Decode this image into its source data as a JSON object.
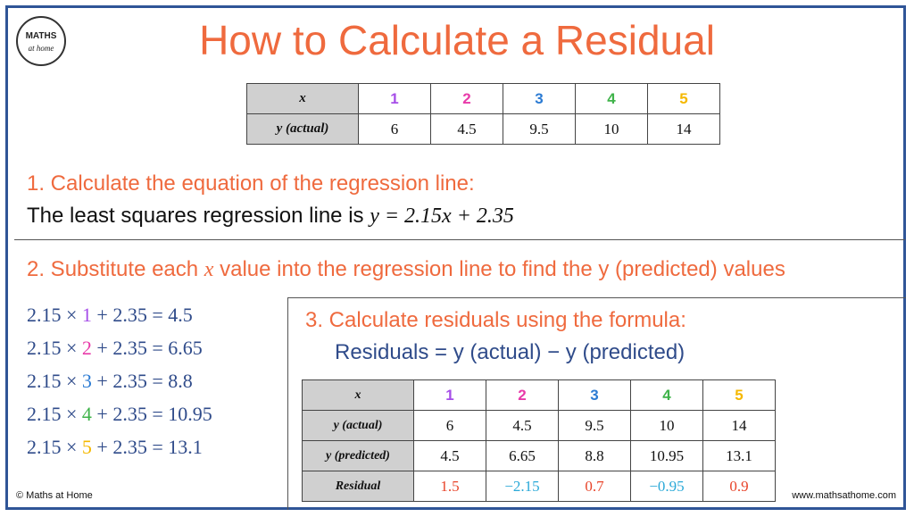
{
  "logo": {
    "line1": "MATHS",
    "line2": "at home"
  },
  "title": "How to Calculate a Residual",
  "table1": {
    "header_label": "x",
    "x_values": [
      "1",
      "2",
      "3",
      "4",
      "5"
    ],
    "row_label": "y (actual)",
    "y_values": [
      "6",
      "4.5",
      "9.5",
      "10",
      "14"
    ]
  },
  "step1": {
    "heading": "1. Calculate the equation of the regression line:",
    "text": "The least squares regression line is ",
    "equation": "y = 2.15x + 2.35"
  },
  "step2": {
    "heading_pre": "2. Substitute each ",
    "heading_var": "x",
    "heading_post": " value into the regression line to find the y (predicted) values",
    "equations": [
      {
        "pre": "2.15  ×  ",
        "x": "1",
        "post": " + 2.35 = 4.5"
      },
      {
        "pre": "2.15  ×  ",
        "x": "2",
        "post": " + 2.35 = 6.65"
      },
      {
        "pre": "2.15  ×  ",
        "x": "3",
        "post": " + 2.35 = 8.8"
      },
      {
        "pre": "2.15  ×  ",
        "x": "4",
        "post": " + 2.35 = 10.95"
      },
      {
        "pre": "2.15  ×  ",
        "x": "5",
        "post": " + 2.35 = 13.1"
      }
    ]
  },
  "step3": {
    "heading": "3. Calculate residuals using the formula:",
    "formula": "Residuals = y (actual) − y (predicted)"
  },
  "table2": {
    "header_label": "x",
    "x_values": [
      "1",
      "2",
      "3",
      "4",
      "5"
    ],
    "actual_label": "y (actual)",
    "actual_values": [
      "6",
      "4.5",
      "9.5",
      "10",
      "14"
    ],
    "predicted_label": "y (predicted)",
    "predicted_values": [
      "4.5",
      "6.65",
      "8.8",
      "10.95",
      "13.1"
    ],
    "residual_label": "Residual",
    "residual_values": [
      "1.5",
      "−2.15",
      "0.7",
      "−0.95",
      "0.9"
    ]
  },
  "footer": {
    "left": "© Maths at Home",
    "right": "www.mathsathome.com"
  },
  "colors": {
    "title": "#ef6a3e",
    "x1": "#a64ee8",
    "x2": "#e83aa9",
    "x3": "#2b7bd3",
    "x4": "#3fb34a",
    "x5": "#f5b800",
    "positive_residual": "#e8442a",
    "negative_residual": "#2aa9d8"
  }
}
